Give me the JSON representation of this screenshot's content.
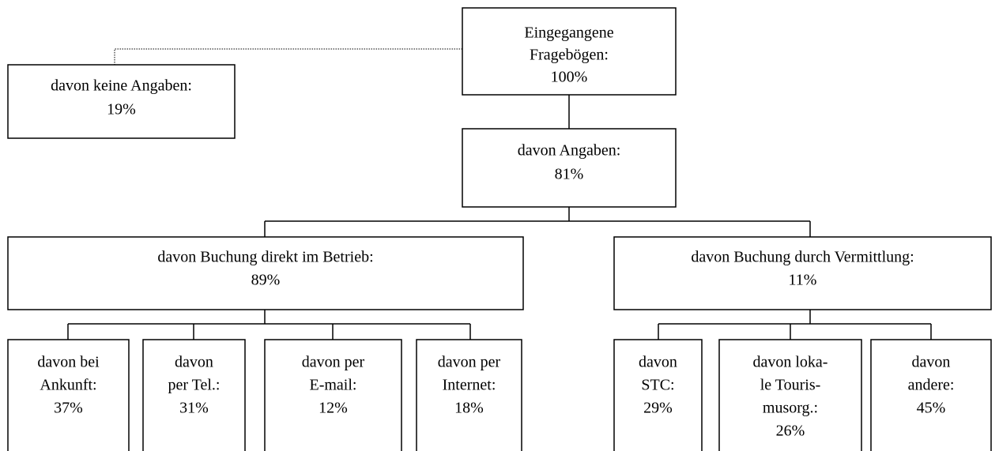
{
  "nodes": [
    {
      "lines": [
        "Eingegangene",
        "Fragebögen:",
        "100%"
      ]
    },
    {
      "lines": [
        "davon keine Angaben:",
        "19%"
      ]
    },
    {
      "lines": [
        "davon Angaben:",
        "81%"
      ]
    },
    {
      "lines": [
        "davon Buchung direkt im Betrieb:",
        "89%"
      ]
    },
    {
      "lines": [
        "davon Buchung durch Vermittlung:",
        "11%"
      ]
    },
    {
      "lines": [
        "davon bei",
        "Ankunft:",
        "37%"
      ]
    },
    {
      "lines": [
        "davon",
        "per Tel.:",
        "31%"
      ]
    },
    {
      "lines": [
        "davon per",
        "E-mail:",
        "12%"
      ]
    },
    {
      "lines": [
        "davon per",
        "Internet:",
        "18%"
      ]
    },
    {
      "lines": [
        "davon",
        "STC:",
        "29%"
      ]
    },
    {
      "lines": [
        "davon loka-",
        "le Touris-",
        "musorg.:",
        "26%"
      ]
    },
    {
      "lines": [
        "davon",
        "andere:",
        "45%"
      ]
    }
  ]
}
